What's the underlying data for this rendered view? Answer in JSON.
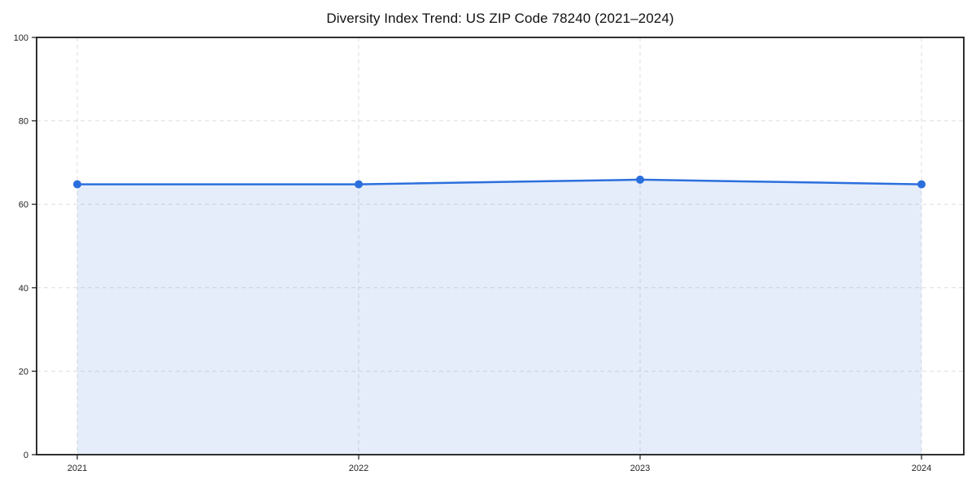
{
  "chart_data": {
    "type": "area",
    "title": "Diversity Index Trend: US ZIP Code 78240 (2021–2024)",
    "categories": [
      "2021",
      "2022",
      "2023",
      "2024"
    ],
    "values": [
      64.8,
      64.8,
      65.9,
      64.8
    ],
    "xlabel": "",
    "ylabel": "",
    "ylim": [
      0,
      100
    ],
    "yticks": [
      0,
      20,
      40,
      60,
      80,
      100
    ],
    "grid": true,
    "grid_style": "dashed",
    "legend_position": "none",
    "line_color": "#2b6fdd",
    "fill_color": "rgba(43,111,221,0.12)",
    "frame_color": "#1a1a1a",
    "marker": "circle"
  }
}
